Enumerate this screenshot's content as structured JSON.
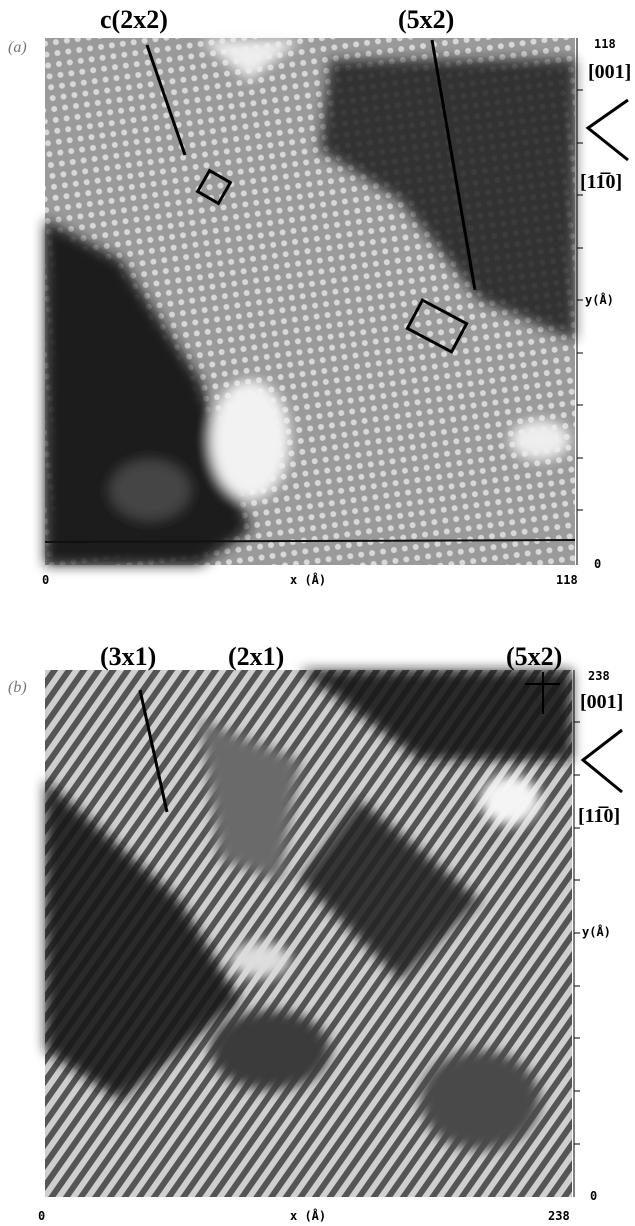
{
  "panels": [
    {
      "label": "(a)",
      "annotations": [
        "c(2x2)",
        "(5x2)"
      ],
      "x_axis": {
        "label": "x (Å)",
        "min": 0,
        "max": 118
      },
      "y_axis": {
        "label": "y(Å)",
        "min": 0,
        "max": 118
      },
      "directions": [
        "[001]",
        "[11̅0]"
      ]
    },
    {
      "label": "(b)",
      "annotations": [
        "(3x1)",
        "(2x1)",
        "(5x2)"
      ],
      "x_axis": {
        "label": "x (Å)",
        "min": 0,
        "max": 238
      },
      "y_axis": {
        "label": "y(Å)",
        "min": 0,
        "max": 238
      },
      "directions": [
        "[001]",
        "[11̅0]"
      ]
    }
  ]
}
